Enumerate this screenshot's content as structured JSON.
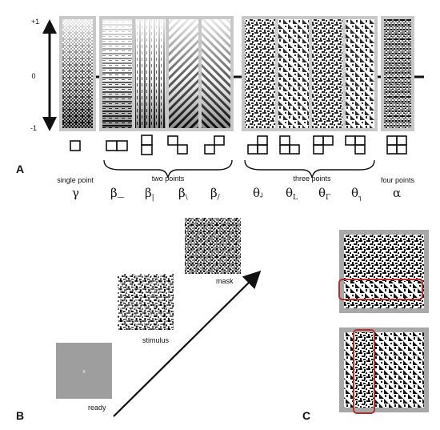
{
  "panels": {
    "a": "A",
    "b": "B",
    "c": "C"
  },
  "axis": {
    "top": "+1",
    "middle": "0",
    "bottom": "-1"
  },
  "groups": [
    {
      "label": "single point"
    },
    {
      "label": "two points"
    },
    {
      "label": "three points"
    },
    {
      "label": "four points"
    }
  ],
  "statistics": [
    {
      "symbol": "γ",
      "subscript": "",
      "glyph": "single"
    },
    {
      "symbol": "β",
      "subscript": "—",
      "glyph": "horizontal-pair"
    },
    {
      "symbol": "β",
      "subscript": "|",
      "glyph": "vertical-pair"
    },
    {
      "symbol": "β",
      "subscript": "\\",
      "glyph": "diagonal-down-pair"
    },
    {
      "symbol": "β",
      "subscript": "/",
      "glyph": "diagonal-up-pair"
    },
    {
      "symbol": "θ",
      "subscript": "┘",
      "glyph": "l-missing-top-left"
    },
    {
      "symbol": "θ",
      "subscript": "L",
      "glyph": "l-missing-top-right"
    },
    {
      "symbol": "θ",
      "subscript": "Γ",
      "glyph": "l-missing-bottom-right"
    },
    {
      "symbol": "θ",
      "subscript": "┐",
      "glyph": "l-missing-bottom-left"
    },
    {
      "symbol": "α",
      "subscript": "",
      "glyph": "two-by-two"
    }
  ],
  "sequence": {
    "ready": "ready",
    "ready_mark": "x",
    "stimulus": "stimulus",
    "mask": "mask"
  }
}
